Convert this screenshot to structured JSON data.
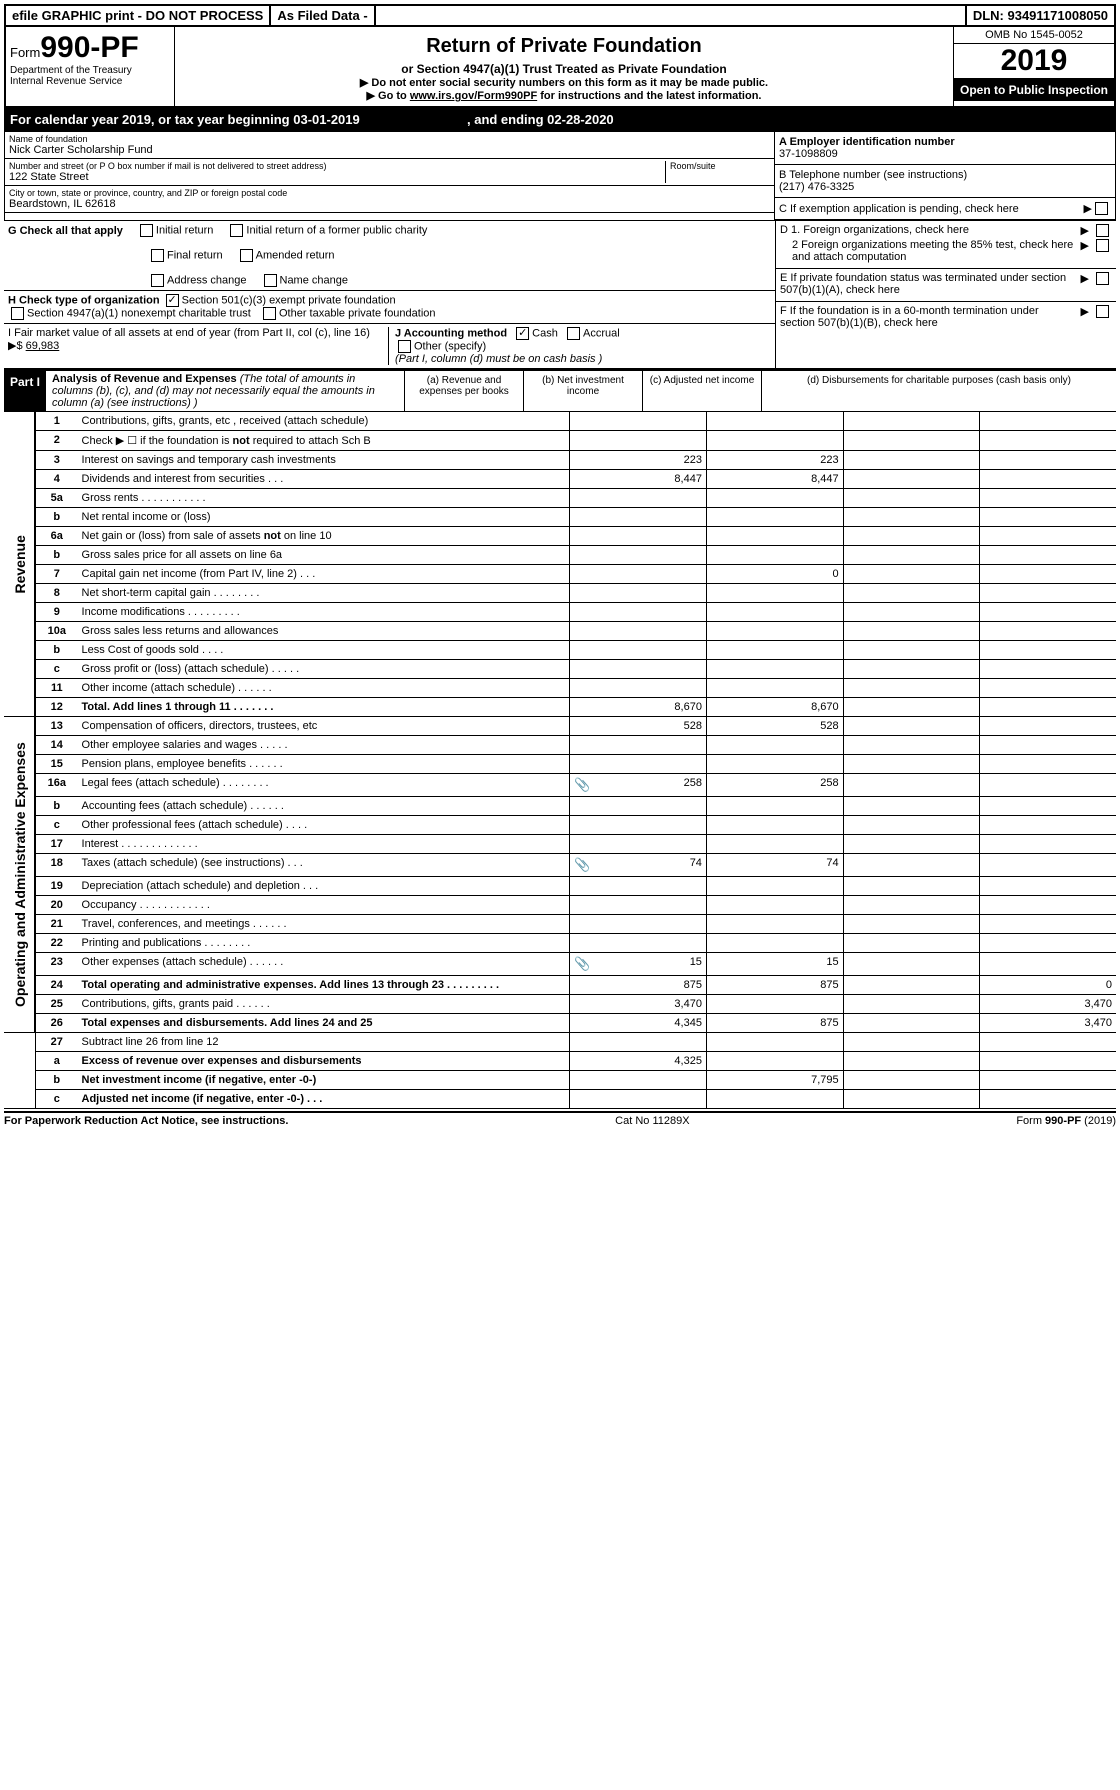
{
  "topbar": {
    "efile": "efile GRAPHIC print - DO NOT PROCESS",
    "asfiled": "As Filed Data -",
    "dln": "DLN: 93491171008050"
  },
  "header": {
    "form_prefix": "Form",
    "form_number": "990-PF",
    "dept1": "Department of the Treasury",
    "dept2": "Internal Revenue Service",
    "title": "Return of Private Foundation",
    "subtitle": "or Section 4947(a)(1) Trust Treated as Private Foundation",
    "instr1": "▶ Do not enter social security numbers on this form as it may be made public.",
    "instr2_pre": "▶ Go to ",
    "instr2_link": "www.irs.gov/Form990PF",
    "instr2_post": " for instructions and the latest information.",
    "omb": "OMB No 1545-0052",
    "year": "2019",
    "inspection": "Open to Public Inspection"
  },
  "calendar": {
    "pre": "For calendar year 2019, or tax year beginning ",
    "begin": "03-01-2019",
    "mid": ", and ending ",
    "end": "02-28-2020"
  },
  "info": {
    "name_label": "Name of foundation",
    "name": "Nick Carter Scholarship Fund",
    "addr_label": "Number and street (or P O  box number if mail is not delivered to street address)",
    "addr": "122 State Street",
    "room_label": "Room/suite",
    "city_label": "City or town, state or province, country, and ZIP or foreign postal code",
    "city": "Beardstown, IL  62618",
    "a_label": "A Employer identification number",
    "a_val": "37-1098809",
    "b_label": "B Telephone number (see instructions)",
    "b_val": "(217) 476-3325",
    "c_label": "C If exemption application is pending, check here"
  },
  "g": {
    "label": "G Check all that apply",
    "initial": "Initial return",
    "initial_former": "Initial return of a former public charity",
    "final": "Final return",
    "amended": "Amended return",
    "address": "Address change",
    "namechg": "Name change"
  },
  "h": {
    "label": "H Check type of organization",
    "opt1": "Section 501(c)(3) exempt private foundation",
    "opt2": "Section 4947(a)(1) nonexempt charitable trust",
    "opt3": "Other taxable private foundation"
  },
  "i": {
    "label": "I Fair market value of all assets at end of year (from Part II, col  (c), line 16) ▶$ ",
    "val": "69,983"
  },
  "j": {
    "label": "J Accounting method",
    "cash": "Cash",
    "accrual": "Accrual",
    "other": "Other (specify)",
    "note": "(Part I, column (d) must be on cash basis )"
  },
  "d": {
    "d1": "D 1. Foreign organizations, check here",
    "d2": "2 Foreign organizations meeting the 85% test, check here and attach computation",
    "e": "E  If private foundation status was terminated under section 507(b)(1)(A), check here",
    "f": "F  If the foundation is in a 60-month termination under section 507(b)(1)(B), check here"
  },
  "part1": {
    "label": "Part I",
    "title": "Analysis of Revenue and Expenses",
    "title_note": " (The total of amounts in columns (b), (c), and (d) may not necessarily equal the amounts in column (a) (see instructions) )",
    "col_a": "(a) Revenue and expenses per books",
    "col_b": "(b) Net investment income",
    "col_c": "(c) Adjusted net income",
    "col_d": "(d) Disbursements for charitable purposes (cash basis only)"
  },
  "side": {
    "revenue": "Revenue",
    "expenses": "Operating and Administrative Expenses"
  },
  "rows": [
    {
      "n": "1",
      "d": "Contributions, gifts, grants, etc , received (attach schedule)",
      "a": "",
      "b": "",
      "c": "",
      "dd": ""
    },
    {
      "n": "2",
      "d": "Check ▶ ☐ if the foundation is not required to attach Sch  B",
      "a": "",
      "b": "",
      "c": "",
      "dd": ""
    },
    {
      "n": "3",
      "d": "Interest on savings and temporary cash investments",
      "a": "223",
      "b": "223",
      "c": "",
      "dd": ""
    },
    {
      "n": "4",
      "d": "Dividends and interest from securities   .   .   .",
      "a": "8,447",
      "b": "8,447",
      "c": "",
      "dd": ""
    },
    {
      "n": "5a",
      "d": "Gross rents   .   .   .   .   .   .   .   .   .   .   .",
      "a": "",
      "b": "",
      "c": "",
      "dd": ""
    },
    {
      "n": "b",
      "d": "Net rental income or (loss)",
      "a": "",
      "b": "",
      "c": "",
      "dd": ""
    },
    {
      "n": "6a",
      "d": "Net gain or (loss) from sale of assets not on line 10",
      "a": "",
      "b": "",
      "c": "",
      "dd": ""
    },
    {
      "n": "b",
      "d": "Gross sales price for all assets on line 6a",
      "a": "",
      "b": "",
      "c": "",
      "dd": ""
    },
    {
      "n": "7",
      "d": "Capital gain net income (from Part IV, line 2)   .   .   .",
      "a": "",
      "b": "0",
      "c": "",
      "dd": ""
    },
    {
      "n": "8",
      "d": "Net short-term capital gain   .   .   .   .   .   .   .   .",
      "a": "",
      "b": "",
      "c": "",
      "dd": ""
    },
    {
      "n": "9",
      "d": "Income modifications   .   .   .   .   .   .   .   .   .",
      "a": "",
      "b": "",
      "c": "",
      "dd": ""
    },
    {
      "n": "10a",
      "d": "Gross sales less returns and allowances",
      "a": "",
      "b": "",
      "c": "",
      "dd": ""
    },
    {
      "n": "b",
      "d": "Less  Cost of goods sold   .   .   .   .",
      "a": "",
      "b": "",
      "c": "",
      "dd": ""
    },
    {
      "n": "c",
      "d": "Gross profit or (loss) (attach schedule)   .   .   .   .   .",
      "a": "",
      "b": "",
      "c": "",
      "dd": ""
    },
    {
      "n": "11",
      "d": "Other income (attach schedule)   .   .   .   .   .   .",
      "a": "",
      "b": "",
      "c": "",
      "dd": ""
    },
    {
      "n": "12",
      "d": "Total. Add lines 1 through 11   .   .   .   .   .   .   .",
      "a": "8,670",
      "b": "8,670",
      "c": "",
      "dd": "",
      "bold": true
    }
  ],
  "rows2": [
    {
      "n": "13",
      "d": "Compensation of officers, directors, trustees, etc",
      "a": "528",
      "b": "528",
      "c": "",
      "dd": ""
    },
    {
      "n": "14",
      "d": "Other employee salaries and wages   .   .   .   .   .",
      "a": "",
      "b": "",
      "c": "",
      "dd": ""
    },
    {
      "n": "15",
      "d": "Pension plans, employee benefits   .   .   .   .   .   .",
      "a": "",
      "b": "",
      "c": "",
      "dd": ""
    },
    {
      "n": "16a",
      "d": "Legal fees (attach schedule)   .   .   .   .   .   .   .   .",
      "a": "258",
      "b": "258",
      "c": "",
      "dd": "",
      "icon": true
    },
    {
      "n": "b",
      "d": "Accounting fees (attach schedule)   .   .   .   .   .   .",
      "a": "",
      "b": "",
      "c": "",
      "dd": ""
    },
    {
      "n": "c",
      "d": "Other professional fees (attach schedule)   .   .   .   .",
      "a": "",
      "b": "",
      "c": "",
      "dd": ""
    },
    {
      "n": "17",
      "d": "Interest   .   .   .   .   .   .   .   .   .   .   .   .   .",
      "a": "",
      "b": "",
      "c": "",
      "dd": ""
    },
    {
      "n": "18",
      "d": "Taxes (attach schedule) (see instructions)   .   .   .",
      "a": "74",
      "b": "74",
      "c": "",
      "dd": "",
      "icon": true
    },
    {
      "n": "19",
      "d": "Depreciation (attach schedule) and depletion   .   .   .",
      "a": "",
      "b": "",
      "c": "",
      "dd": ""
    },
    {
      "n": "20",
      "d": "Occupancy   .   .   .   .   .   .   .   .   .   .   .   .",
      "a": "",
      "b": "",
      "c": "",
      "dd": ""
    },
    {
      "n": "21",
      "d": "Travel, conferences, and meetings   .   .   .   .   .   .",
      "a": "",
      "b": "",
      "c": "",
      "dd": ""
    },
    {
      "n": "22",
      "d": "Printing and publications   .   .   .   .   .   .   .   .",
      "a": "",
      "b": "",
      "c": "",
      "dd": ""
    },
    {
      "n": "23",
      "d": "Other expenses (attach schedule)   .   .   .   .   .   .",
      "a": "15",
      "b": "15",
      "c": "",
      "dd": "",
      "icon": true
    },
    {
      "n": "24",
      "d": "Total operating and administrative expenses. Add lines 13 through 23   .   .   .   .   .   .   .   .   .",
      "a": "875",
      "b": "875",
      "c": "",
      "dd": "0",
      "bold": true
    },
    {
      "n": "25",
      "d": "Contributions, gifts, grants paid   .   .   .   .   .   .",
      "a": "3,470",
      "b": "",
      "c": "",
      "dd": "3,470"
    },
    {
      "n": "26",
      "d": "Total expenses and disbursements. Add lines 24 and 25",
      "a": "4,345",
      "b": "875",
      "c": "",
      "dd": "3,470",
      "bold": true
    }
  ],
  "rows3": [
    {
      "n": "27",
      "d": "Subtract line 26 from line 12",
      "a": "",
      "b": "",
      "c": "",
      "dd": ""
    },
    {
      "n": "a",
      "d": "Excess of revenue over expenses and disbursements",
      "a": "4,325",
      "b": "",
      "c": "",
      "dd": "",
      "bold": true
    },
    {
      "n": "b",
      "d": "Net investment income (if negative, enter -0-)",
      "a": "",
      "b": "7,795",
      "c": "",
      "dd": "",
      "bold": true
    },
    {
      "n": "c",
      "d": "Adjusted net income (if negative, enter -0-)   .   .   .",
      "a": "",
      "b": "",
      "c": "",
      "dd": "",
      "bold": true
    }
  ],
  "footer": {
    "left": "For Paperwork Reduction Act Notice, see instructions.",
    "mid": "Cat  No  11289X",
    "right_pre": "Form ",
    "right_form": "990-PF",
    "right_post": " (2019)"
  }
}
